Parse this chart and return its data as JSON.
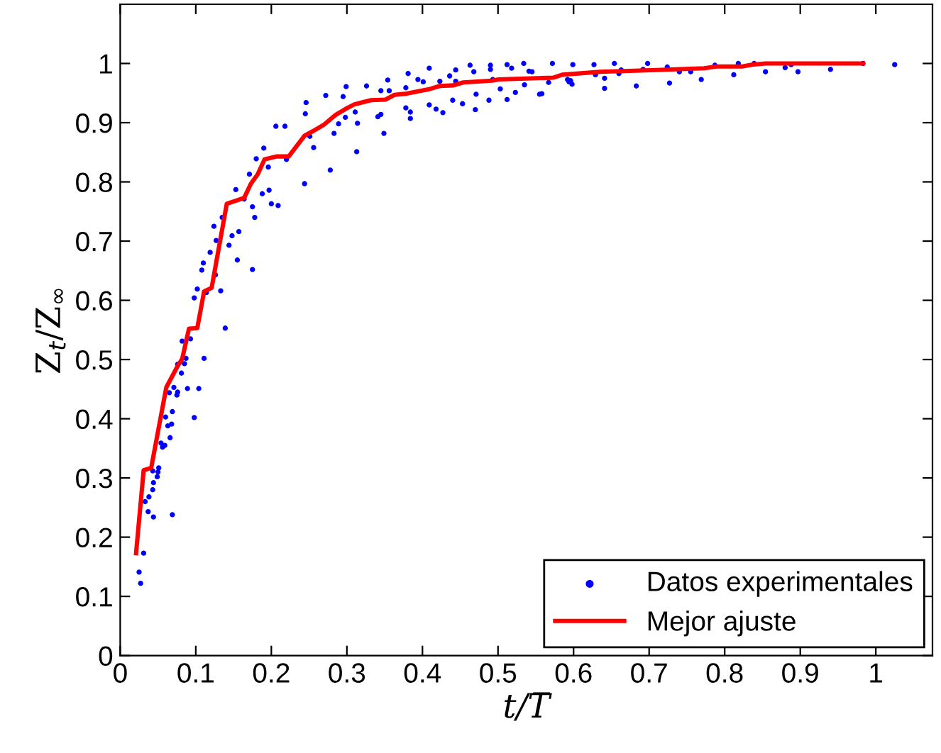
{
  "chart_data": {
    "type": "scatter",
    "xlabel": "t/T̅",
    "ylabel": "Z$_{t}$/Z$_{∞}$",
    "xlim": [
      0,
      1.075
    ],
    "ylim": [
      0,
      1.1
    ],
    "xticks": [
      0,
      0.1,
      0.2,
      0.3,
      0.4,
      0.5,
      0.6,
      0.7,
      0.8,
      0.9,
      1
    ],
    "yticks": [
      0,
      0.1,
      0.2,
      0.3,
      0.4,
      0.5,
      0.6,
      0.7,
      0.8,
      0.9,
      1
    ],
    "grid": false,
    "legend": "bottom right",
    "series": [
      {
        "name": "Datos experimentales",
        "marker": "circle",
        "color": "#0000ff",
        "x": [
          0.025,
          0.027,
          0.031,
          0.033,
          0.037,
          0.038,
          0.044,
          0.043,
          0.044,
          0.043,
          0.049,
          0.05,
          0.051,
          0.054,
          0.056,
          0.059,
          0.06,
          0.063,
          0.066,
          0.068,
          0.069,
          0.065,
          0.071,
          0.069,
          0.075,
          0.076,
          0.076,
          0.081,
          0.082,
          0.085,
          0.087,
          0.089,
          0.093,
          0.098,
          0.104,
          0.111,
          0.098,
          0.102,
          0.108,
          0.11,
          0.114,
          0.119,
          0.124,
          0.126,
          0.127,
          0.133,
          0.135,
          0.139,
          0.144,
          0.148,
          0.153,
          0.155,
          0.157,
          0.164,
          0.171,
          0.175,
          0.175,
          0.178,
          0.18,
          0.188,
          0.19,
          0.196,
          0.197,
          0.2,
          0.206,
          0.209,
          0.218,
          0.22,
          0.244,
          0.245,
          0.246,
          0.251,
          0.256,
          0.272,
          0.278,
          0.283,
          0.289,
          0.295,
          0.299,
          0.298,
          0.311,
          0.313,
          0.314,
          0.326,
          0.341,
          0.345,
          0.345,
          0.349,
          0.354,
          0.356,
          0.378,
          0.381,
          0.378,
          0.384,
          0.384,
          0.394,
          0.401,
          0.409,
          0.409,
          0.418,
          0.423,
          0.427,
          0.436,
          0.44,
          0.444,
          0.444,
          0.453,
          0.463,
          0.468,
          0.47,
          0.471,
          0.488,
          0.49,
          0.49,
          0.493,
          0.503,
          0.512,
          0.512,
          0.518,
          0.523,
          0.534,
          0.535,
          0.541,
          0.545,
          0.555,
          0.558,
          0.567,
          0.572,
          0.592,
          0.594,
          0.596,
          0.598,
          0.599,
          0.627,
          0.629,
          0.641,
          0.641,
          0.654,
          0.66,
          0.663,
          0.683,
          0.692,
          0.698,
          0.724,
          0.727,
          0.74,
          0.755,
          0.769,
          0.787,
          0.812,
          0.818,
          0.839,
          0.854,
          0.88,
          0.888,
          0.897,
          0.94,
          0.983,
          1.025
        ],
        "values": [
          0.141,
          0.122,
          0.173,
          0.26,
          0.243,
          0.268,
          0.234,
          0.28,
          0.292,
          0.312,
          0.302,
          0.31,
          0.317,
          0.359,
          0.352,
          0.355,
          0.403,
          0.388,
          0.368,
          0.391,
          0.412,
          0.444,
          0.453,
          0.238,
          0.44,
          0.445,
          0.492,
          0.477,
          0.531,
          0.493,
          0.502,
          0.451,
          0.535,
          0.402,
          0.451,
          0.502,
          0.604,
          0.619,
          0.651,
          0.663,
          0.613,
          0.681,
          0.725,
          0.643,
          0.701,
          0.616,
          0.74,
          0.553,
          0.693,
          0.709,
          0.787,
          0.668,
          0.716,
          0.771,
          0.813,
          0.652,
          0.758,
          0.74,
          0.839,
          0.78,
          0.857,
          0.825,
          0.786,
          0.763,
          0.894,
          0.76,
          0.894,
          0.838,
          0.797,
          0.915,
          0.934,
          0.877,
          0.858,
          0.946,
          0.82,
          0.882,
          0.898,
          0.944,
          0.961,
          0.909,
          0.918,
          0.851,
          0.899,
          0.962,
          0.91,
          0.914,
          0.954,
          0.882,
          0.972,
          0.954,
          0.959,
          0.983,
          0.925,
          0.918,
          0.907,
          0.973,
          0.969,
          0.992,
          0.93,
          0.923,
          0.97,
          0.917,
          0.979,
          0.938,
          0.989,
          0.97,
          0.932,
          0.997,
          0.986,
          0.922,
          0.948,
          0.938,
          0.997,
          0.99,
          0.973,
          0.957,
          0.998,
          0.939,
          0.992,
          0.951,
          1.0,
          0.964,
          0.987,
          0.986,
          0.948,
          0.949,
          0.968,
          1.0,
          0.973,
          0.969,
          0.971,
          0.965,
          0.998,
          0.998,
          0.981,
          0.975,
          0.958,
          1.0,
          0.983,
          0.989,
          0.962,
          0.99,
          1.0,
          0.994,
          0.967,
          0.986,
          0.986,
          0.973,
          0.997,
          0.981,
          1.0,
          1.0,
          0.986,
          0.993,
          0.998,
          0.986,
          0.99,
          1.0,
          0.998
        ]
      },
      {
        "name": "Mejor ajuste",
        "type": "line",
        "marker": "none",
        "line_style": "solid",
        "color": "#ff0000",
        "x": [
          0.021,
          0.031,
          0.041,
          0.061,
          0.076,
          0.082,
          0.091,
          0.102,
          0.111,
          0.121,
          0.141,
          0.155,
          0.164,
          0.173,
          0.182,
          0.191,
          0.207,
          0.223,
          0.244,
          0.254,
          0.27,
          0.285,
          0.298,
          0.31,
          0.332,
          0.351,
          0.363,
          0.379,
          0.41,
          0.423,
          0.441,
          0.454,
          0.492,
          0.501,
          0.573,
          0.585,
          0.635,
          0.71,
          0.773,
          0.789,
          0.823,
          0.836,
          0.854,
          0.983
        ],
        "values": [
          0.173,
          0.313,
          0.317,
          0.453,
          0.489,
          0.501,
          0.552,
          0.553,
          0.615,
          0.621,
          0.763,
          0.769,
          0.773,
          0.797,
          0.813,
          0.838,
          0.843,
          0.843,
          0.878,
          0.885,
          0.897,
          0.913,
          0.923,
          0.931,
          0.938,
          0.939,
          0.947,
          0.949,
          0.957,
          0.962,
          0.963,
          0.968,
          0.971,
          0.973,
          0.976,
          0.981,
          0.986,
          0.989,
          0.992,
          0.995,
          0.995,
          0.998,
          1.0,
          1.0
        ]
      }
    ]
  }
}
